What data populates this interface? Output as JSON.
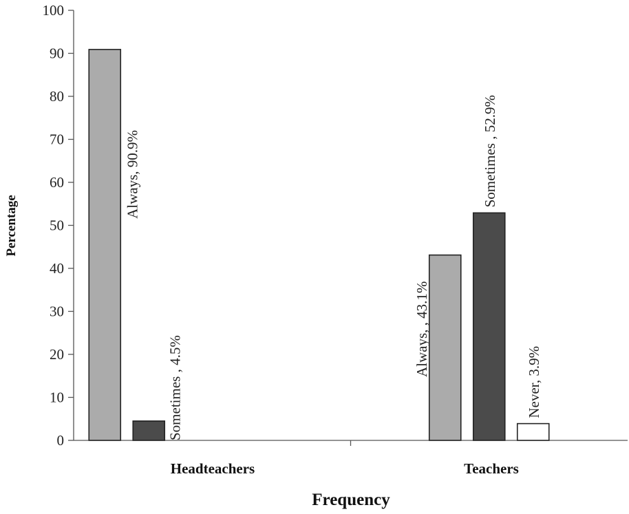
{
  "chart_data": {
    "type": "bar",
    "title": "",
    "xlabel": "Frequency",
    "ylabel": "Percentage",
    "ylim": [
      0,
      100
    ],
    "yticks": [
      0,
      10,
      20,
      30,
      40,
      50,
      60,
      70,
      80,
      90,
      100
    ],
    "grid": false,
    "legend": "none",
    "groups": [
      {
        "category": "Headteachers",
        "bars": [
          {
            "series": "Always",
            "value": 90.9,
            "label": "Always,  90.9%",
            "color": "#ababab"
          },
          {
            "series": "Sometimes",
            "value": 4.5,
            "label": "Sometimes , 4.5%",
            "color": "#4b4b4b"
          }
        ]
      },
      {
        "category": "Teachers",
        "bars": [
          {
            "series": "Always",
            "value": 43.1,
            "label": "Always, , 43.1%",
            "color": "#ababab"
          },
          {
            "series": "Sometimes",
            "value": 52.9,
            "label": "Sometimes , 52.9%",
            "color": "#4b4b4b"
          },
          {
            "series": "Never",
            "value": 3.9,
            "label": "Never, 3.9%",
            "color": "#ffffff"
          }
        ]
      }
    ]
  }
}
